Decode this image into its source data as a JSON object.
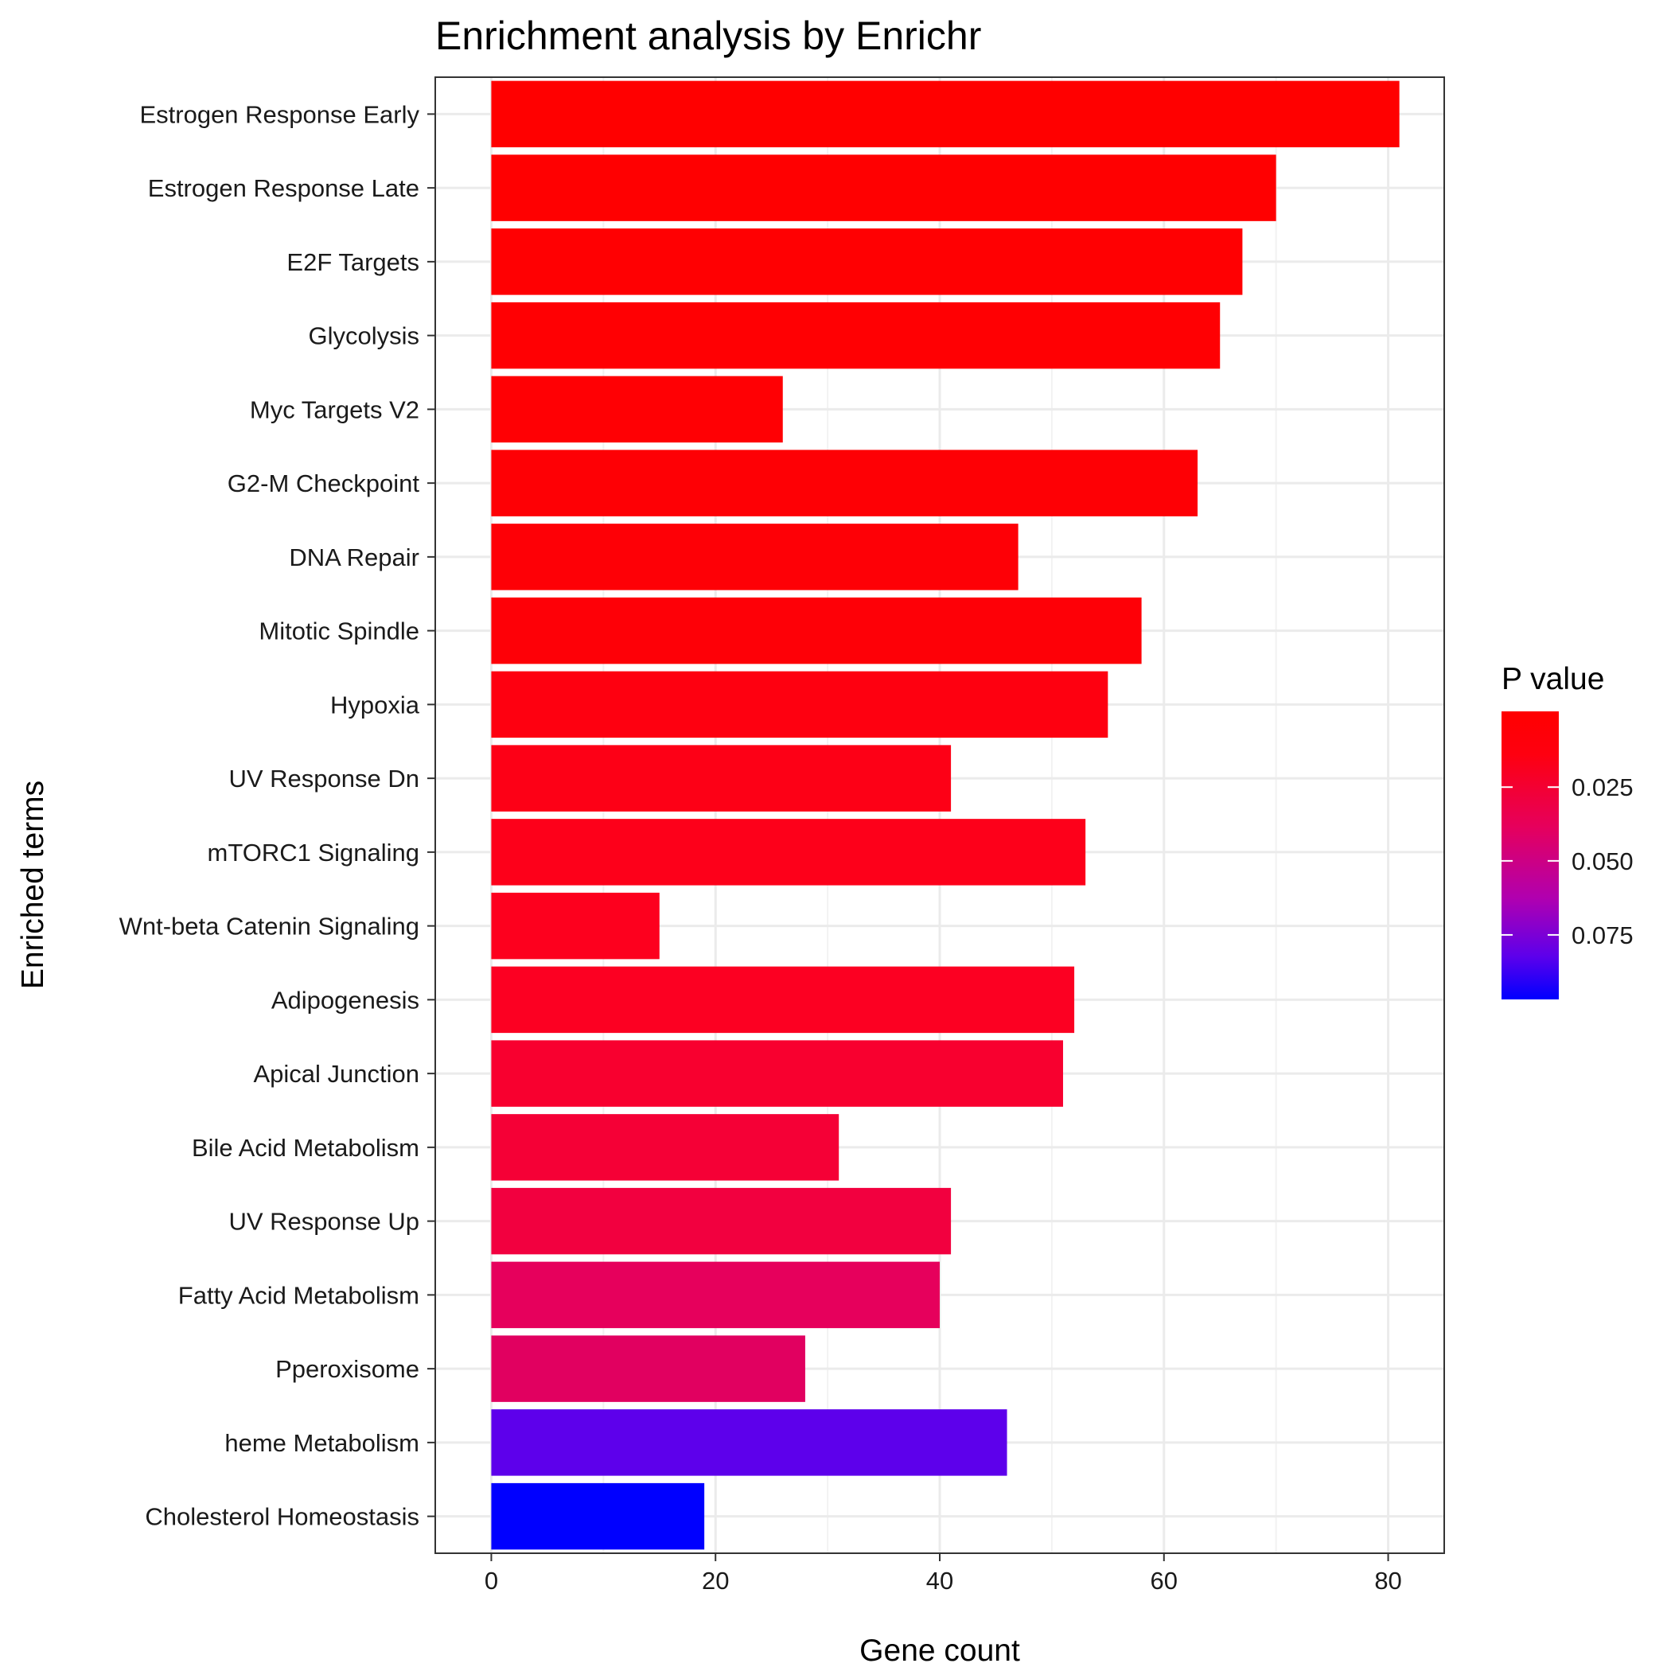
{
  "chart_data": {
    "type": "bar",
    "orientation": "horizontal",
    "title": "Enrichment analysis by Enrichr",
    "xlabel": "Gene count",
    "ylabel": "Enriched terms",
    "xlim": [
      -5,
      85
    ],
    "x_ticks": [
      0,
      20,
      40,
      60,
      80
    ],
    "grid": true,
    "categories": [
      "Estrogen Response Early",
      "Estrogen Response Late",
      "E2F Targets",
      "Glycolysis",
      "Myc Targets V2",
      "G2-M Checkpoint",
      "DNA Repair",
      "Mitotic Spindle",
      "Hypoxia",
      "UV Response Dn",
      "mTORC1 Signaling",
      "Wnt-beta Catenin Signaling",
      "Adipogenesis",
      "Apical Junction",
      "Bile Acid Metabolism",
      "UV Response Up",
      "Fatty Acid Metabolism",
      "Pperoxisome",
      "heme Metabolism",
      "Cholesterol Homeostasis"
    ],
    "values": [
      81,
      70,
      67,
      65,
      26,
      63,
      47,
      58,
      55,
      41,
      53,
      15,
      52,
      51,
      31,
      41,
      40,
      28,
      46,
      19
    ],
    "p_values": [
      1e-06,
      1e-05,
      3e-05,
      0.0001,
      0.0015,
      0.0004,
      0.001,
      0.0012,
      0.002,
      0.004,
      0.004,
      0.005,
      0.006,
      0.008,
      0.01,
      0.012,
      0.016,
      0.018,
      0.08,
      0.1
    ],
    "bar_colors": [
      "#FF0000",
      "#FF0001",
      "#FF0002",
      "#FF0003",
      "#FF0004",
      "#FE0005",
      "#FE0006",
      "#FE0007",
      "#FE0010",
      "#FD0016",
      "#FD001A",
      "#FD001E",
      "#FC0022",
      "#F8002F",
      "#F50036",
      "#F2003F",
      "#E6005C",
      "#E10060",
      "#5D00EB",
      "#0000FF"
    ],
    "legend": {
      "title": "P value",
      "position": "right",
      "ticks": [
        "0.025",
        "0.050",
        "0.075"
      ],
      "color_high": "#FF0000",
      "color_low": "#0000FF"
    }
  }
}
